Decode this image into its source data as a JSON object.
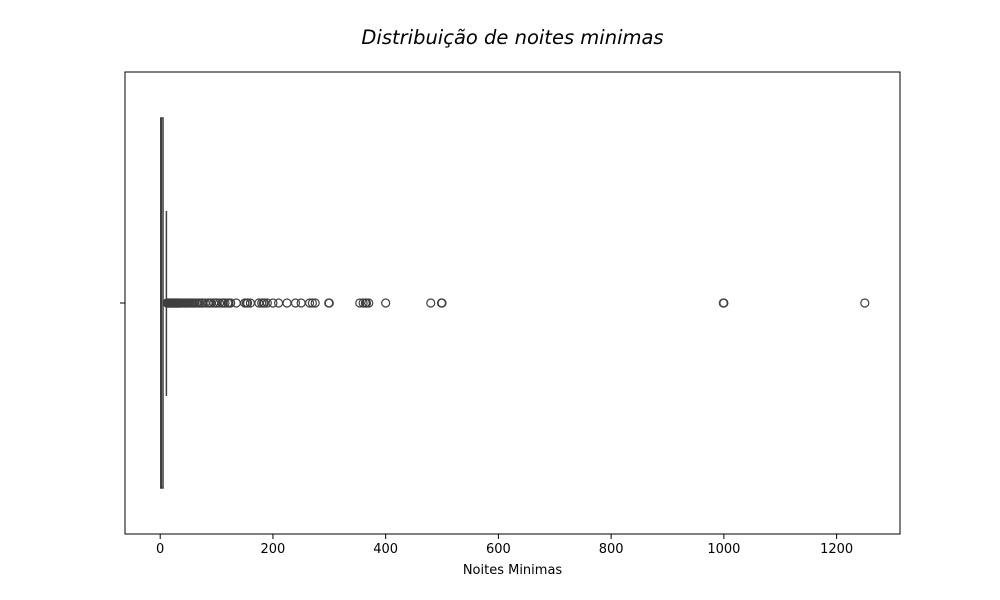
{
  "chart_data": {
    "type": "box",
    "orientation": "horizontal",
    "title": "Distribuição de noites minimas",
    "xlabel": "Noites Minimas",
    "ylabel": "",
    "xlim": [
      -62.45,
      1312.45
    ],
    "x_ticks": [
      0,
      200,
      400,
      600,
      800,
      1000,
      1200
    ],
    "x_tick_labels": [
      "0",
      "200",
      "400",
      "600",
      "800",
      "1000",
      "1200"
    ],
    "grid": false,
    "box": {
      "min": 1,
      "q1": 1,
      "median": 2,
      "q3": 5,
      "whisker_high": 11
    },
    "outliers": [
      12,
      13,
      14,
      15,
      16,
      17,
      18,
      19,
      20,
      21,
      22,
      23,
      24,
      25,
      26,
      27,
      28,
      29,
      30,
      31,
      32,
      33,
      34,
      35,
      36,
      38,
      40,
      42,
      44,
      45,
      46,
      48,
      50,
      52,
      55,
      56,
      58,
      60,
      62,
      65,
      68,
      70,
      74,
      75,
      80,
      85,
      88,
      90,
      95,
      99,
      100,
      105,
      110,
      112,
      115,
      120,
      122,
      125,
      135,
      150,
      153,
      155,
      160,
      175,
      180,
      183,
      185,
      190,
      200,
      210,
      225,
      240,
      250,
      265,
      270,
      275,
      299,
      300,
      354,
      360,
      364,
      365,
      366,
      370,
      400,
      480,
      499,
      500,
      999,
      1000,
      1250
    ],
    "colors": {
      "box_edge": "#3f3f3f",
      "outlier_edge": "#3f3f3f",
      "axes": "#000000"
    }
  }
}
